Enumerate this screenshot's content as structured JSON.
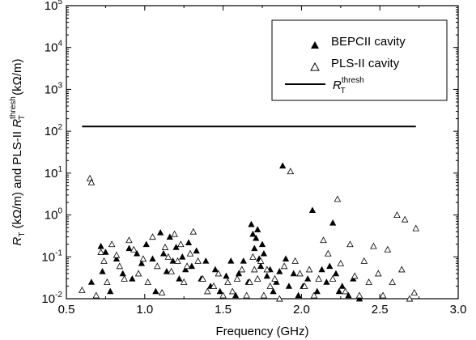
{
  "chart_data": {
    "type": "scatter",
    "x_axis": {
      "label": "Frequency (GHz)",
      "range": [
        0.5,
        3.0
      ],
      "ticks": [
        0.5,
        1.0,
        1.5,
        2.0,
        2.5,
        3.0
      ],
      "tick_labels": [
        "0.5",
        "1.0",
        "1.5",
        "2.0",
        "2.5",
        "3.0"
      ]
    },
    "y_axis": {
      "label_parts": {
        "r": "R",
        "sub": "T",
        "unit1": " (kΩ/m) and PLS-II ",
        "sup": "thresh",
        "unit2": " (kΩ/m)"
      },
      "scale": "log",
      "range": [
        0.01,
        100000
      ],
      "ticks": [
        0.01,
        0.1,
        1,
        10,
        100,
        1000,
        10000,
        100000
      ],
      "tick_labels": [
        {
          "base": "10",
          "exp": "-2"
        },
        {
          "base": "10",
          "exp": "-1"
        },
        {
          "base": "10",
          "exp": "0"
        },
        {
          "base": "10",
          "exp": "1"
        },
        {
          "base": "10",
          "exp": "2"
        },
        {
          "base": "10",
          "exp": "3"
        },
        {
          "base": "10",
          "exp": "4"
        },
        {
          "base": "10",
          "exp": "5"
        }
      ]
    },
    "grid": false,
    "legend": {
      "placement": "top-right",
      "entries": [
        {
          "marker": "filled-triangle",
          "label": "BEPCII cavity"
        },
        {
          "marker": "open-triangle",
          "label": "PLS-II cavity"
        },
        {
          "marker": "line",
          "label_r": "R",
          "label_sub": "T",
          "label_sup": "thresh"
        }
      ]
    },
    "series": [
      {
        "name": "BEPCII cavity",
        "marker": "filled-triangle",
        "color": "#000000",
        "points": [
          [
            0.66,
            0.025
          ],
          [
            0.72,
            0.18
          ],
          [
            0.73,
            0.045
          ],
          [
            0.75,
            0.13
          ],
          [
            0.78,
            0.015
          ],
          [
            0.82,
            0.09
          ],
          [
            0.86,
            0.04
          ],
          [
            0.9,
            0.16
          ],
          [
            0.92,
            0.03
          ],
          [
            0.95,
            0.12
          ],
          [
            0.98,
            0.07
          ],
          [
            1.01,
            0.2
          ],
          [
            1.05,
            0.09
          ],
          [
            1.07,
            0.015
          ],
          [
            1.1,
            0.38
          ],
          [
            1.12,
            0.12
          ],
          [
            1.14,
            0.045
          ],
          [
            1.16,
            0.3
          ],
          [
            1.18,
            0.08
          ],
          [
            1.2,
            0.17
          ],
          [
            1.22,
            0.03
          ],
          [
            1.24,
            0.1
          ],
          [
            1.26,
            0.05
          ],
          [
            1.28,
            0.22
          ],
          [
            1.3,
            0.06
          ],
          [
            1.33,
            0.14
          ],
          [
            1.36,
            0.03
          ],
          [
            1.39,
            0.08
          ],
          [
            1.42,
            0.02
          ],
          [
            1.45,
            0.05
          ],
          [
            1.48,
            0.015
          ],
          [
            1.52,
            0.035
          ],
          [
            1.55,
            0.08
          ],
          [
            1.58,
            0.012
          ],
          [
            1.6,
            0.04
          ],
          [
            1.63,
            0.08
          ],
          [
            1.66,
            0.025
          ],
          [
            1.68,
            0.6
          ],
          [
            1.69,
            0.35
          ],
          [
            1.7,
            0.16
          ],
          [
            1.71,
            0.28
          ],
          [
            1.72,
            0.45
          ],
          [
            1.73,
            0.09
          ],
          [
            1.74,
            0.06
          ],
          [
            1.75,
            0.2
          ],
          [
            1.76,
            0.12
          ],
          [
            1.78,
            0.035
          ],
          [
            1.8,
            0.05
          ],
          [
            1.82,
            0.015
          ],
          [
            1.84,
            0.025
          ],
          [
            1.86,
            0.045
          ],
          [
            1.88,
            15
          ],
          [
            1.9,
            0.09
          ],
          [
            1.92,
            0.02
          ],
          [
            1.95,
            0.04
          ],
          [
            1.98,
            0.012
          ],
          [
            2.01,
            0.02
          ],
          [
            2.04,
            0.03
          ],
          [
            2.07,
            1.3
          ],
          [
            2.1,
            0.015
          ],
          [
            2.13,
            0.05
          ],
          [
            2.16,
            0.025
          ],
          [
            2.18,
            0.06
          ],
          [
            2.2,
            0.65
          ],
          [
            2.22,
            0.04
          ],
          [
            2.24,
            0.015
          ],
          [
            2.26,
            0.02
          ],
          [
            2.3,
            0.012
          ],
          [
            2.33,
            0.03
          ],
          [
            2.37,
            0.01
          ]
        ]
      },
      {
        "name": "PLS-II cavity",
        "marker": "open-triangle",
        "color": "#000000",
        "points": [
          [
            0.6,
            0.016
          ],
          [
            0.65,
            7.5
          ],
          [
            0.66,
            6.0
          ],
          [
            0.69,
            0.012
          ],
          [
            0.72,
            0.13
          ],
          [
            0.74,
            0.08
          ],
          [
            0.76,
            0.025
          ],
          [
            0.79,
            0.2
          ],
          [
            0.82,
            0.11
          ],
          [
            0.84,
            0.06
          ],
          [
            0.87,
            0.03
          ],
          [
            0.9,
            0.25
          ],
          [
            0.93,
            0.15
          ],
          [
            0.96,
            0.04
          ],
          [
            0.99,
            0.09
          ],
          [
            1.02,
            0.025
          ],
          [
            1.05,
            0.3
          ],
          [
            1.08,
            0.06
          ],
          [
            1.11,
            0.014
          ],
          [
            1.13,
            0.17
          ],
          [
            1.15,
            0.1
          ],
          [
            1.17,
            0.045
          ],
          [
            1.19,
            0.35
          ],
          [
            1.21,
            0.08
          ],
          [
            1.23,
            0.2
          ],
          [
            1.25,
            0.025
          ],
          [
            1.27,
            0.06
          ],
          [
            1.29,
            0.12
          ],
          [
            1.31,
            0.4
          ],
          [
            1.34,
            0.08
          ],
          [
            1.37,
            0.03
          ],
          [
            1.4,
            0.015
          ],
          [
            1.44,
            0.02
          ],
          [
            1.47,
            0.04
          ],
          [
            1.5,
            0.012
          ],
          [
            1.53,
            0.025
          ],
          [
            1.56,
            0.015
          ],
          [
            1.59,
            0.03
          ],
          [
            1.62,
            0.05
          ],
          [
            1.65,
            0.012
          ],
          [
            1.67,
            0.025
          ],
          [
            1.69,
            0.1
          ],
          [
            1.7,
            0.05
          ],
          [
            1.72,
            0.03
          ],
          [
            1.74,
            0.08
          ],
          [
            1.76,
            0.012
          ],
          [
            1.78,
            0.05
          ],
          [
            1.8,
            0.02
          ],
          [
            1.83,
            0.03
          ],
          [
            1.86,
            0.01
          ],
          [
            1.89,
            0.06
          ],
          [
            1.93,
            11
          ],
          [
            1.96,
            0.08
          ],
          [
            1.99,
            0.04
          ],
          [
            2.02,
            0.02
          ],
          [
            2.05,
            0.05
          ],
          [
            2.08,
            0.012
          ],
          [
            2.11,
            0.03
          ],
          [
            2.14,
            0.25
          ],
          [
            2.17,
            0.12
          ],
          [
            2.2,
            0.03
          ],
          [
            2.23,
            2.4
          ],
          [
            2.25,
            0.07
          ],
          [
            2.28,
            0.015
          ],
          [
            2.31,
            0.2
          ],
          [
            2.34,
            0.035
          ],
          [
            2.37,
            0.012
          ],
          [
            2.4,
            0.08
          ],
          [
            2.43,
            0.025
          ],
          [
            2.46,
            0.18
          ],
          [
            2.49,
            0.04
          ],
          [
            2.52,
            0.012
          ],
          [
            2.55,
            0.15
          ],
          [
            2.58,
            0.025
          ],
          [
            2.61,
            1.0
          ],
          [
            2.64,
            0.05
          ],
          [
            2.66,
            0.78
          ],
          [
            2.69,
            0.01
          ],
          [
            2.72,
            0.014
          ],
          [
            2.73,
            0.48
          ]
        ]
      },
      {
        "name_r": "R",
        "name_sub": "T",
        "name_sup": "thresh",
        "marker": "line",
        "color": "#000000",
        "x": [
          0.6,
          2.73
        ],
        "y": [
          130,
          130
        ]
      }
    ]
  }
}
